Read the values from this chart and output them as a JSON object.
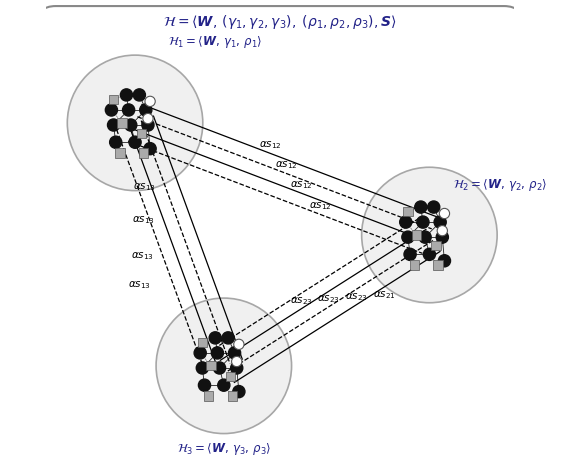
{
  "title": "$\\mathcal{H}{=}\\langle \\boldsymbol{W},\\,(\\gamma_1,\\gamma_2,\\gamma_3),\\;(\\rho_1,\\rho_2,\\rho_3),\\boldsymbol{S}\\rangle$",
  "bg_color": "#f5f5f5",
  "outer_box_color": "#999999",
  "circle_color": "#bbbbbb",
  "node_black": "#111111",
  "node_gray": "#aaaaaa",
  "node_open": "#ffffff",
  "label_h1": "$\\mathcal{H}_1{=}\\langle \\boldsymbol{W},\\,\\gamma_1,\\,\\rho_1\\rangle$",
  "label_h2": "$\\mathcal{H}_2{=}\\langle \\boldsymbol{W},\\,\\gamma_2,\\,\\rho_2\\rangle$",
  "label_h3": "$\\mathcal{H}_3{=}\\langle \\boldsymbol{W},\\,\\gamma_3,\\,\\rho_3\\rangle$",
  "c1": [
    0.19,
    0.74
  ],
  "c2": [
    0.82,
    0.5
  ],
  "c3": [
    0.38,
    0.22
  ],
  "r": 0.145
}
